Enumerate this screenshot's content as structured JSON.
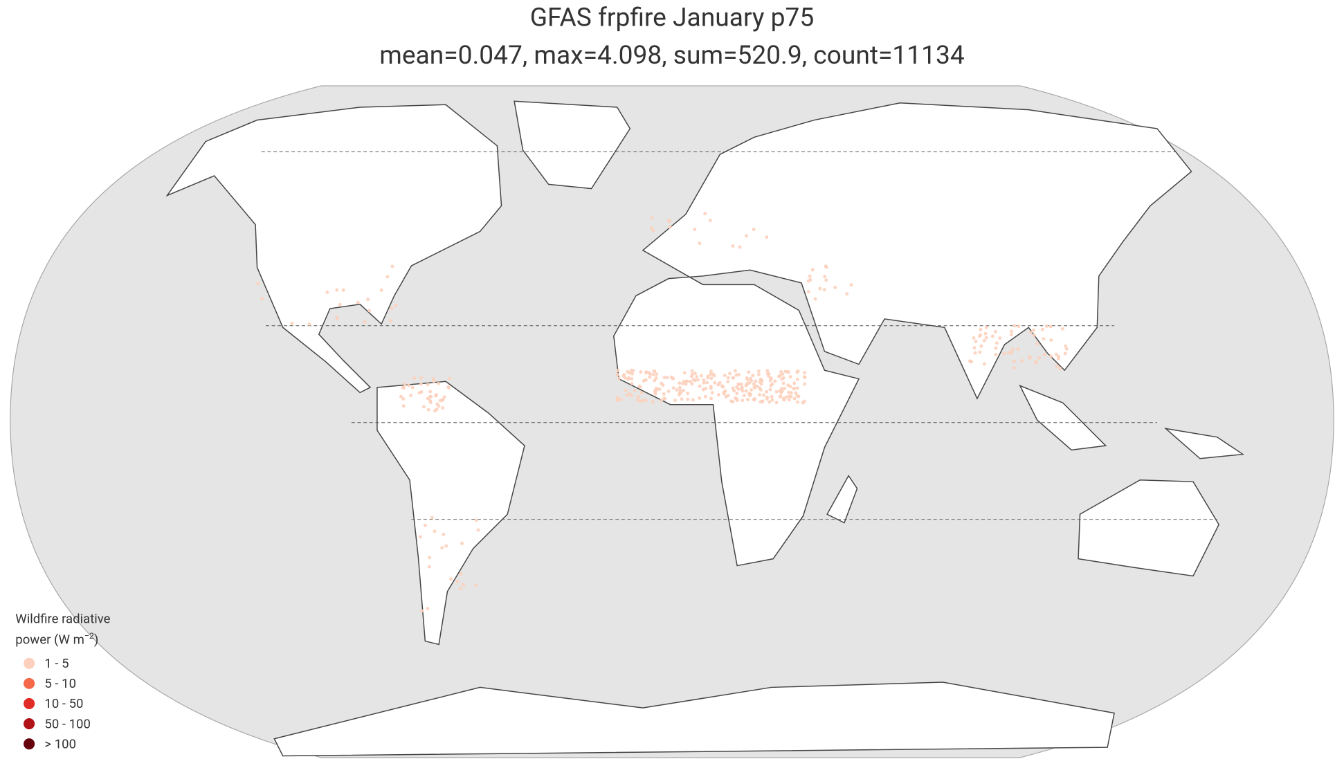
{
  "title": "GFAS frpfire January p75",
  "subtitle": "mean=0.047, max=4.098, sum=520.9, count=11134",
  "legend": {
    "title_line1": "Wildfire radiative",
    "title_line2": "power (W m",
    "title_sup": "−2",
    "title_end": ")",
    "entries": [
      {
        "label": "1 - 5",
        "color": "#fcd0bc"
      },
      {
        "label": "5 - 10",
        "color": "#f5694a"
      },
      {
        "label": "10 - 50",
        "color": "#e02b27"
      },
      {
        "label": "50 - 100",
        "color": "#b01217"
      },
      {
        "label": "> 100",
        "color": "#67000d"
      }
    ]
  }
}
